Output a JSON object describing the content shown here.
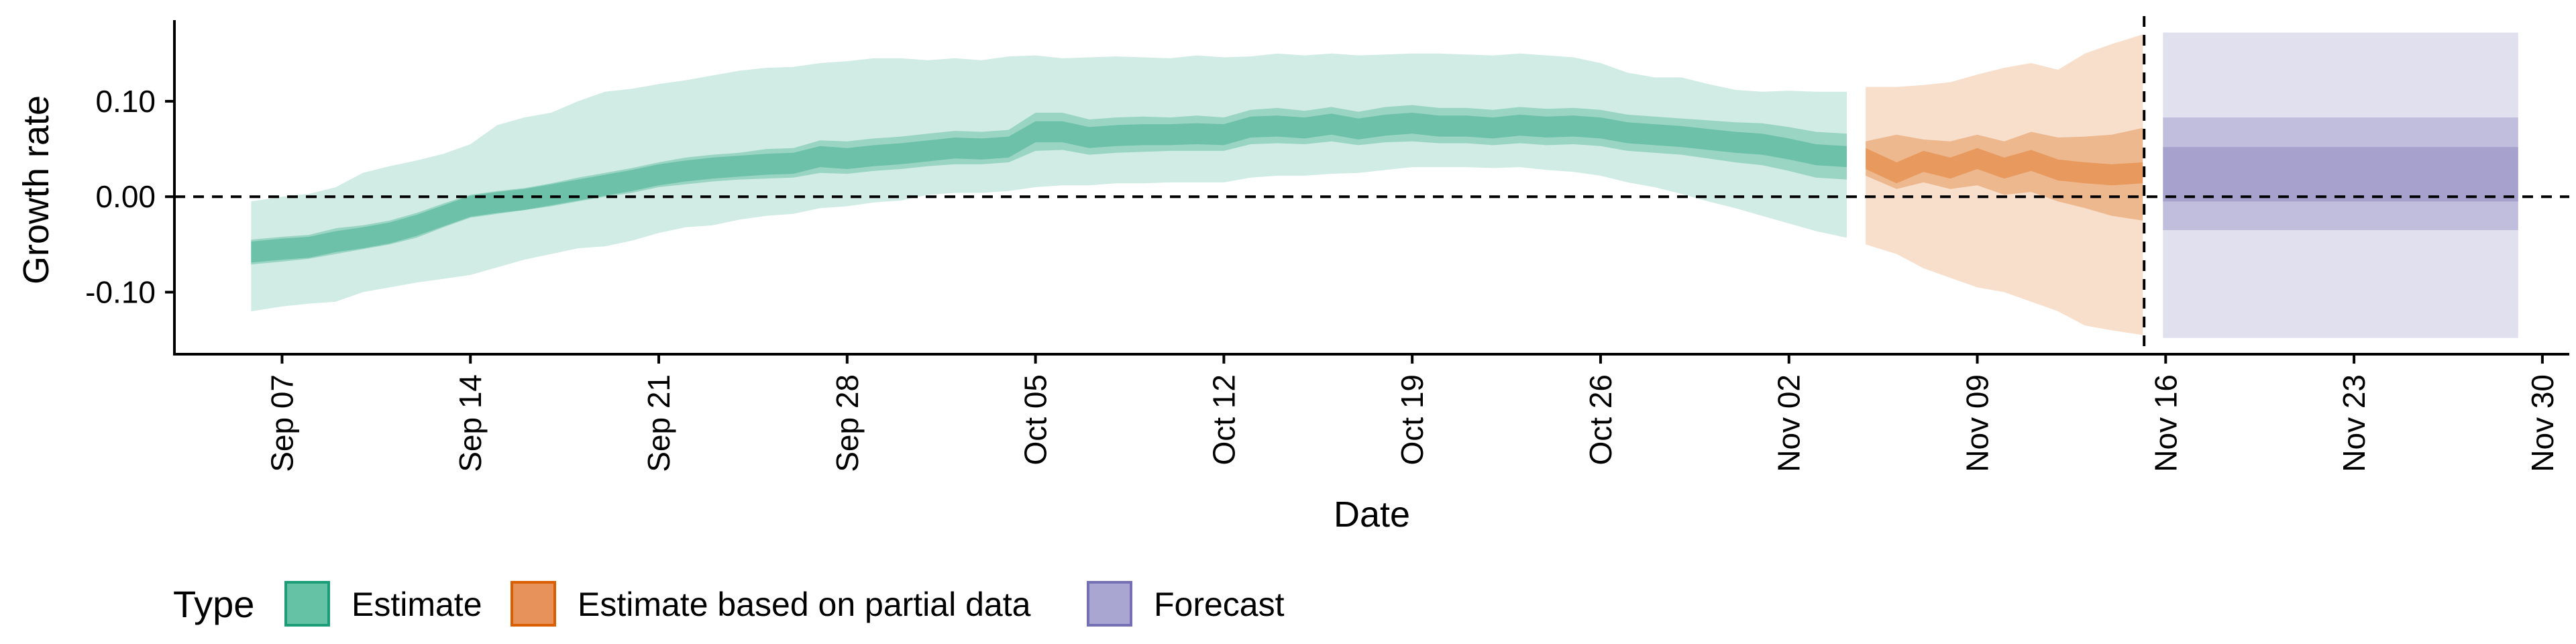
{
  "chart_data": {
    "type": "area",
    "xlabel": "Date",
    "ylabel": "Growth rate",
    "ylim": [
      -0.165,
      0.185
    ],
    "xlim": [
      "2020-09-03",
      "2020-12-01"
    ],
    "y_ticks": [
      -0.1,
      0.0,
      0.1
    ],
    "y_tick_labels": [
      "-0.10",
      "0.00",
      "0.10"
    ],
    "x_ticks": [
      "2020-09-07",
      "2020-09-14",
      "2020-09-21",
      "2020-09-28",
      "2020-10-05",
      "2020-10-12",
      "2020-10-19",
      "2020-10-26",
      "2020-11-02",
      "2020-11-09",
      "2020-11-16",
      "2020-11-23",
      "2020-11-30"
    ],
    "x_tick_labels": [
      "Sep 07",
      "Sep 14",
      "Sep 21",
      "Sep 28",
      "Oct 05",
      "Oct 12",
      "Oct 19",
      "Oct 26",
      "Nov 02",
      "Nov 09",
      "Nov 16",
      "Nov 23",
      "Nov 30"
    ],
    "hline": 0.0,
    "vline": "2020-11-15",
    "grid": false,
    "legend": {
      "title": "Type",
      "position": "bottom-left",
      "items": [
        {
          "label": "Estimate",
          "fill": "#66c2a5",
          "stroke": "#1b9e77"
        },
        {
          "label": "Estimate based on partial data",
          "fill": "#e6925a",
          "stroke": "#d95f02"
        },
        {
          "label": "Forecast",
          "fill": "#a9a6d1",
          "stroke": "#7570b3"
        }
      ]
    },
    "series": [
      {
        "name": "Estimate",
        "color": "#1b9e77",
        "x": [
          "2020-09-06",
          "2020-09-07",
          "2020-09-08",
          "2020-09-09",
          "2020-09-10",
          "2020-09-11",
          "2020-09-12",
          "2020-09-13",
          "2020-09-14",
          "2020-09-15",
          "2020-09-16",
          "2020-09-17",
          "2020-09-18",
          "2020-09-19",
          "2020-09-20",
          "2020-09-21",
          "2020-09-22",
          "2020-09-23",
          "2020-09-24",
          "2020-09-25",
          "2020-09-26",
          "2020-09-27",
          "2020-09-28",
          "2020-09-29",
          "2020-09-30",
          "2020-10-01",
          "2020-10-02",
          "2020-10-03",
          "2020-10-04",
          "2020-10-05",
          "2020-10-06",
          "2020-10-07",
          "2020-10-08",
          "2020-10-09",
          "2020-10-10",
          "2020-10-11",
          "2020-10-12",
          "2020-10-13",
          "2020-10-14",
          "2020-10-15",
          "2020-10-16",
          "2020-10-17",
          "2020-10-18",
          "2020-10-19",
          "2020-10-20",
          "2020-10-21",
          "2020-10-22",
          "2020-10-23",
          "2020-10-24",
          "2020-10-25",
          "2020-10-26",
          "2020-10-27",
          "2020-10-28",
          "2020-10-29",
          "2020-10-30",
          "2020-10-31",
          "2020-11-01",
          "2020-11-02",
          "2020-11-03",
          "2020-11-04"
        ],
        "median": [
          -0.058,
          -0.055,
          -0.053,
          -0.047,
          -0.043,
          -0.038,
          -0.03,
          -0.02,
          -0.01,
          -0.006,
          -0.003,
          0.002,
          0.007,
          0.012,
          0.017,
          0.023,
          0.027,
          0.03,
          0.032,
          0.034,
          0.035,
          0.042,
          0.04,
          0.043,
          0.045,
          0.048,
          0.051,
          0.05,
          0.052,
          0.068,
          0.068,
          0.062,
          0.064,
          0.065,
          0.065,
          0.066,
          0.065,
          0.073,
          0.074,
          0.072,
          0.076,
          0.071,
          0.075,
          0.077,
          0.074,
          0.074,
          0.072,
          0.075,
          0.073,
          0.074,
          0.072,
          0.067,
          0.065,
          0.063,
          0.06,
          0.057,
          0.055,
          0.05,
          0.044,
          0.042
        ],
        "lower50": [
          -0.071,
          -0.068,
          -0.065,
          -0.06,
          -0.055,
          -0.05,
          -0.043,
          -0.032,
          -0.022,
          -0.018,
          -0.014,
          -0.01,
          -0.005,
          0.0,
          0.004,
          0.01,
          0.013,
          0.016,
          0.018,
          0.019,
          0.02,
          0.025,
          0.024,
          0.027,
          0.029,
          0.032,
          0.034,
          0.034,
          0.036,
          0.048,
          0.049,
          0.044,
          0.046,
          0.047,
          0.048,
          0.048,
          0.048,
          0.055,
          0.056,
          0.055,
          0.058,
          0.054,
          0.057,
          0.058,
          0.056,
          0.056,
          0.054,
          0.056,
          0.054,
          0.055,
          0.053,
          0.048,
          0.046,
          0.044,
          0.04,
          0.036,
          0.033,
          0.027,
          0.02,
          0.018
        ],
        "upper50": [
          -0.045,
          -0.042,
          -0.04,
          -0.033,
          -0.03,
          -0.025,
          -0.017,
          -0.007,
          0.002,
          0.006,
          0.009,
          0.014,
          0.02,
          0.025,
          0.03,
          0.036,
          0.041,
          0.044,
          0.046,
          0.05,
          0.051,
          0.059,
          0.058,
          0.061,
          0.063,
          0.066,
          0.069,
          0.068,
          0.07,
          0.088,
          0.088,
          0.081,
          0.083,
          0.084,
          0.083,
          0.085,
          0.083,
          0.091,
          0.093,
          0.09,
          0.094,
          0.089,
          0.094,
          0.096,
          0.093,
          0.093,
          0.091,
          0.094,
          0.092,
          0.093,
          0.091,
          0.086,
          0.084,
          0.082,
          0.08,
          0.078,
          0.077,
          0.073,
          0.068,
          0.066
        ],
        "lower90": [
          -0.12,
          -0.115,
          -0.112,
          -0.11,
          -0.1,
          -0.095,
          -0.09,
          -0.086,
          -0.082,
          -0.074,
          -0.066,
          -0.06,
          -0.054,
          -0.052,
          -0.046,
          -0.038,
          -0.032,
          -0.03,
          -0.024,
          -0.02,
          -0.018,
          -0.012,
          -0.01,
          -0.006,
          -0.004,
          0.002,
          0.004,
          0.004,
          0.006,
          0.01,
          0.012,
          0.012,
          0.014,
          0.014,
          0.015,
          0.015,
          0.015,
          0.02,
          0.022,
          0.022,
          0.024,
          0.025,
          0.028,
          0.031,
          0.031,
          0.031,
          0.03,
          0.031,
          0.028,
          0.026,
          0.022,
          0.015,
          0.01,
          0.003,
          -0.005,
          -0.012,
          -0.02,
          -0.028,
          -0.036,
          -0.043
        ],
        "upper90": [
          -0.005,
          0.0,
          0.003,
          0.01,
          0.025,
          0.032,
          0.038,
          0.045,
          0.055,
          0.075,
          0.083,
          0.088,
          0.1,
          0.11,
          0.113,
          0.118,
          0.122,
          0.127,
          0.132,
          0.135,
          0.136,
          0.14,
          0.142,
          0.145,
          0.145,
          0.143,
          0.145,
          0.143,
          0.147,
          0.148,
          0.145,
          0.146,
          0.147,
          0.146,
          0.145,
          0.148,
          0.146,
          0.147,
          0.15,
          0.148,
          0.15,
          0.148,
          0.149,
          0.15,
          0.15,
          0.149,
          0.148,
          0.15,
          0.148,
          0.146,
          0.14,
          0.13,
          0.125,
          0.125,
          0.118,
          0.112,
          0.11,
          0.111,
          0.11,
          0.11
        ]
      },
      {
        "name": "Estimate based on partial data",
        "color": "#d95f02",
        "x": [
          "2020-11-05",
          "2020-11-06",
          "2020-11-07",
          "2020-11-08",
          "2020-11-09",
          "2020-11-10",
          "2020-11-11",
          "2020-11-12",
          "2020-11-13",
          "2020-11-14",
          "2020-11-15"
        ],
        "median": [
          0.04,
          0.025,
          0.037,
          0.03,
          0.04,
          0.03,
          0.038,
          0.028,
          0.025,
          0.023,
          0.025
        ],
        "lower50": [
          0.022,
          0.008,
          0.015,
          0.008,
          0.012,
          0.002,
          0.005,
          -0.005,
          -0.012,
          -0.02,
          -0.025
        ],
        "upper50": [
          0.058,
          0.065,
          0.06,
          0.058,
          0.065,
          0.058,
          0.068,
          0.062,
          0.063,
          0.065,
          0.072
        ],
        "lower90": [
          -0.05,
          -0.06,
          -0.075,
          -0.085,
          -0.095,
          -0.1,
          -0.11,
          -0.12,
          -0.135,
          -0.14,
          -0.145
        ],
        "upper90": [
          0.115,
          0.115,
          0.117,
          0.12,
          0.128,
          0.135,
          0.14,
          0.133,
          0.15,
          0.16,
          0.17
        ]
      },
      {
        "name": "Forecast",
        "color": "#7570b3",
        "x": [
          "2020-11-16",
          "2020-11-29"
        ],
        "median": [
          0.01,
          0.01
        ],
        "lower30": [
          -0.005,
          -0.005
        ],
        "upper30": [
          0.052,
          0.052
        ],
        "lower50": [
          -0.035,
          -0.035
        ],
        "upper50": [
          0.083,
          0.083
        ],
        "lower90": [
          -0.148,
          -0.148
        ],
        "upper90": [
          0.172,
          0.172
        ]
      }
    ]
  }
}
